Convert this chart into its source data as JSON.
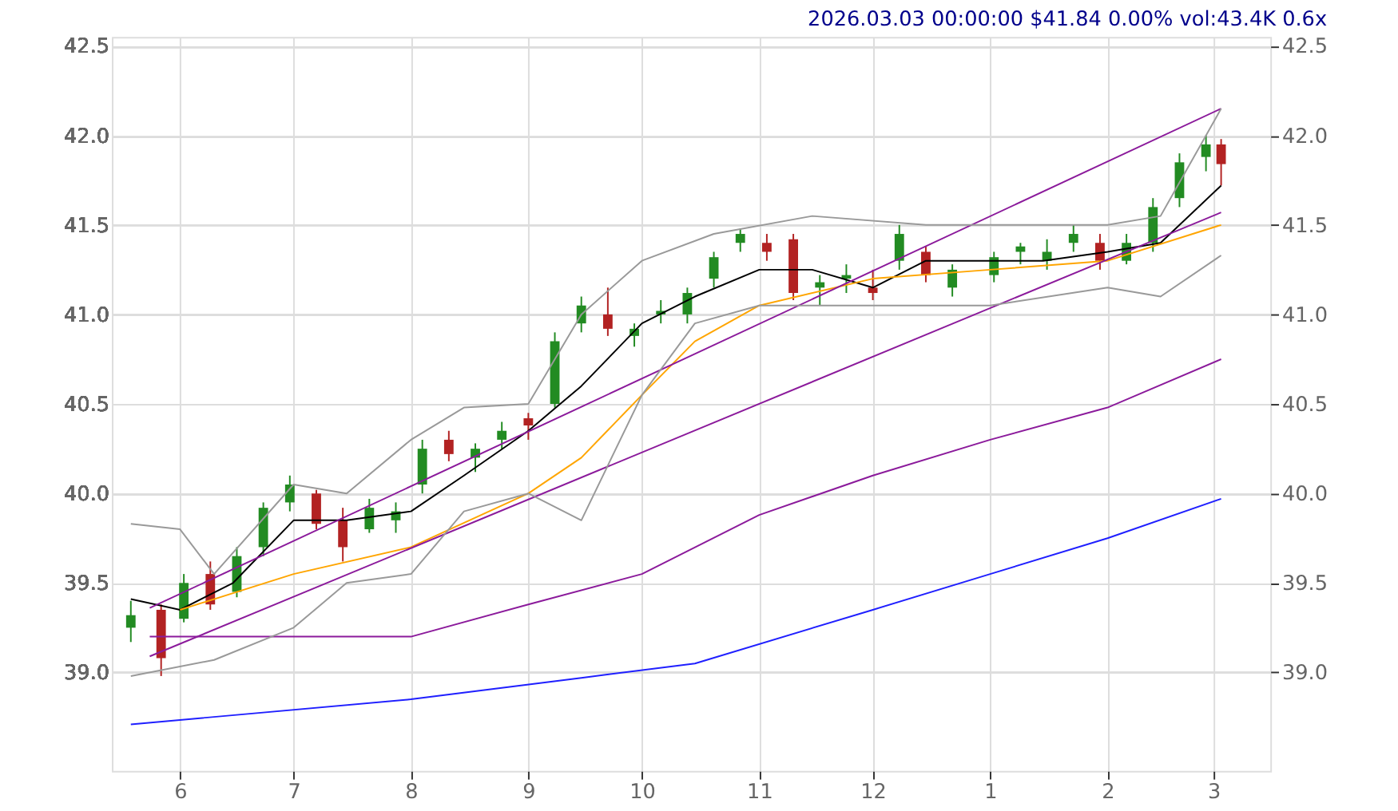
{
  "chart_data": {
    "type": "candlestick",
    "title": "2026.03.03 00:00:00 $41.84 0.00% vol:43.4K 0.6x",
    "x": [
      "2025-05-19",
      "2025-05-27",
      "2025-06-02",
      "2025-06-09",
      "2025-06-16",
      "2025-06-23",
      "2025-06-30",
      "2025-07-07",
      "2025-07-14",
      "2025-07-21",
      "2025-07-28",
      "2025-08-04",
      "2025-08-11",
      "2025-08-18",
      "2025-08-25",
      "2025-09-01",
      "2025-09-08",
      "2025-09-15",
      "2025-09-22",
      "2025-09-29",
      "2025-10-06",
      "2025-10-13",
      "2025-10-20",
      "2025-10-27",
      "2025-11-03",
      "2025-11-10",
      "2025-11-17",
      "2025-11-24",
      "2025-12-01",
      "2025-12-08",
      "2025-12-15",
      "2025-12-22",
      "2026-01-02",
      "2026-01-09",
      "2026-01-16",
      "2026-01-23",
      "2026-01-30",
      "2026-02-06",
      "2026-02-13",
      "2026-02-20",
      "2026-02-27",
      "2026-03-03"
    ],
    "ohlc": [
      [
        39.25,
        39.4,
        39.17,
        39.32
      ],
      [
        39.35,
        39.38,
        38.98,
        39.08
      ],
      [
        39.3,
        39.55,
        39.28,
        39.5
      ],
      [
        39.55,
        39.62,
        39.35,
        39.38
      ],
      [
        39.45,
        39.7,
        39.42,
        39.65
      ],
      [
        39.7,
        39.95,
        39.65,
        39.92
      ],
      [
        39.95,
        40.1,
        39.9,
        40.05
      ],
      [
        40.0,
        40.02,
        39.8,
        39.83
      ],
      [
        39.85,
        39.92,
        39.62,
        39.7
      ],
      [
        39.8,
        39.97,
        39.78,
        39.92
      ],
      [
        39.85,
        39.95,
        39.78,
        39.9
      ],
      [
        40.05,
        40.3,
        40.0,
        40.25
      ],
      [
        40.3,
        40.35,
        40.18,
        40.22
      ],
      [
        40.2,
        40.28,
        40.12,
        40.25
      ],
      [
        40.3,
        40.4,
        40.25,
        40.35
      ],
      [
        40.42,
        40.45,
        40.3,
        40.38
      ],
      [
        40.5,
        40.9,
        40.48,
        40.85
      ],
      [
        40.95,
        41.1,
        40.9,
        41.05
      ],
      [
        41.0,
        41.15,
        40.88,
        40.92
      ],
      [
        40.88,
        40.95,
        40.82,
        40.92
      ],
      [
        41.0,
        41.08,
        40.95,
        41.02
      ],
      [
        41.0,
        41.15,
        40.95,
        41.12
      ],
      [
        41.2,
        41.35,
        41.15,
        41.32
      ],
      [
        41.4,
        41.48,
        41.35,
        41.45
      ],
      [
        41.4,
        41.45,
        41.3,
        41.35
      ],
      [
        41.42,
        41.45,
        41.08,
        41.12
      ],
      [
        41.15,
        41.22,
        41.05,
        41.18
      ],
      [
        41.2,
        41.28,
        41.12,
        41.22
      ],
      [
        41.15,
        41.25,
        41.08,
        41.12
      ],
      [
        41.3,
        41.5,
        41.25,
        41.45
      ],
      [
        41.35,
        41.38,
        41.18,
        41.22
      ],
      [
        41.15,
        41.28,
        41.1,
        41.25
      ],
      [
        41.22,
        41.35,
        41.18,
        41.32
      ],
      [
        41.35,
        41.4,
        41.28,
        41.38
      ],
      [
        41.3,
        41.42,
        41.25,
        41.35
      ],
      [
        41.4,
        41.5,
        41.35,
        41.45
      ],
      [
        41.4,
        41.45,
        41.25,
        41.3
      ],
      [
        41.3,
        41.45,
        41.28,
        41.4
      ],
      [
        41.4,
        41.65,
        41.35,
        41.6
      ],
      [
        41.65,
        41.9,
        41.6,
        41.85
      ],
      [
        41.88,
        42.0,
        41.8,
        41.95
      ],
      [
        41.95,
        41.98,
        41.72,
        41.84
      ]
    ],
    "colors": [
      "#228b22",
      "#b22222",
      "#228b22",
      "#b22222",
      "#228b22",
      "#228b22",
      "#228b22",
      "#b22222",
      "#b22222",
      "#228b22",
      "#228b22",
      "#228b22",
      "#b22222",
      "#228b22",
      "#228b22",
      "#b22222",
      "#228b22",
      "#228b22",
      "#b22222",
      "#228b22",
      "#228b22",
      "#228b22",
      "#228b22",
      "#228b22",
      "#b22222",
      "#b22222",
      "#228b22",
      "#228b22",
      "#b22222",
      "#228b22",
      "#b22222",
      "#228b22",
      "#228b22",
      "#228b22",
      "#228b22",
      "#228b22",
      "#b22222",
      "#228b22",
      "#228b22",
      "#228b22",
      "#228b22",
      "#b22222"
    ],
    "series": [
      {
        "type": "line",
        "color": "#000000",
        "x": [
          "2025-05-19",
          "2025-06-01",
          "2025-06-15",
          "2025-07-01",
          "2025-07-15",
          "2025-08-01",
          "2025-08-15",
          "2025-09-01",
          "2025-09-15",
          "2025-10-01",
          "2025-10-15",
          "2025-11-01",
          "2025-11-15",
          "2025-12-01",
          "2025-12-15",
          "2026-01-01",
          "2026-01-15",
          "2026-02-01",
          "2026-02-15",
          "2026-03-03"
        ],
        "values": [
          39.41,
          39.35,
          39.5,
          39.85,
          39.85,
          39.9,
          40.1,
          40.35,
          40.6,
          40.95,
          41.1,
          41.25,
          41.25,
          41.15,
          41.3,
          41.3,
          41.3,
          41.35,
          41.4,
          41.72
        ]
      },
      {
        "type": "line",
        "color": "#ffa500",
        "x": [
          "2025-06-01",
          "2025-07-01",
          "2025-08-01",
          "2025-09-01",
          "2025-09-15",
          "2025-10-01",
          "2025-10-15",
          "2025-11-01",
          "2025-12-01",
          "2026-01-01",
          "2026-02-01",
          "2026-03-03"
        ],
        "values": [
          39.35,
          39.55,
          39.7,
          40.0,
          40.2,
          40.55,
          40.85,
          41.05,
          41.2,
          41.25,
          41.3,
          41.5
        ]
      },
      {
        "type": "line",
        "color": "#8b1a9b",
        "x": [
          "2025-05-24",
          "2026-03-03"
        ],
        "values": [
          39.36,
          42.15
        ]
      },
      {
        "type": "line",
        "color": "#8b1a9b",
        "x": [
          "2025-05-24",
          "2026-03-03"
        ],
        "values": [
          39.09,
          41.57
        ]
      },
      {
        "type": "line",
        "color": "#8b1a9b",
        "x": [
          "2025-05-24",
          "2025-08-01",
          "2025-09-01",
          "2025-10-01",
          "2025-11-01",
          "2025-12-01",
          "2026-01-01",
          "2026-02-01",
          "2026-03-03"
        ],
        "values": [
          39.2,
          39.2,
          39.38,
          39.55,
          39.88,
          40.1,
          40.3,
          40.48,
          40.75
        ]
      },
      {
        "type": "line",
        "color": "#1f1fff",
        "x": [
          "2025-05-19",
          "2025-08-01",
          "2025-09-15",
          "2025-10-15",
          "2025-12-01",
          "2026-01-01",
          "2026-02-01",
          "2026-03-03"
        ],
        "values": [
          38.71,
          38.85,
          38.97,
          39.05,
          39.35,
          39.55,
          39.75,
          39.97
        ]
      },
      {
        "type": "line",
        "color": "#999999",
        "x": [
          "2025-05-19",
          "2025-06-01",
          "2025-06-10",
          "2025-07-01",
          "2025-07-15",
          "2025-08-01",
          "2025-08-15",
          "2025-09-01",
          "2025-09-15",
          "2025-10-01",
          "2025-10-20",
          "2025-11-15",
          "2025-12-15",
          "2026-01-15",
          "2026-02-01",
          "2026-02-15",
          "2026-03-03"
        ],
        "values": [
          39.83,
          39.8,
          39.55,
          40.05,
          40.0,
          40.3,
          40.48,
          40.5,
          41.0,
          41.3,
          41.45,
          41.55,
          41.5,
          41.5,
          41.5,
          41.55,
          42.15
        ]
      },
      {
        "type": "line",
        "color": "#999999",
        "x": [
          "2025-05-19",
          "2025-06-10",
          "2025-07-01",
          "2025-07-15",
          "2025-08-01",
          "2025-08-15",
          "2025-09-01",
          "2025-09-15",
          "2025-10-01",
          "2025-10-15",
          "2025-11-01",
          "2025-12-01",
          "2026-01-01",
          "2026-02-01",
          "2026-02-15",
          "2026-03-03"
        ],
        "values": [
          38.98,
          39.07,
          39.25,
          39.5,
          39.55,
          39.9,
          40.0,
          39.85,
          40.55,
          40.95,
          41.05,
          41.05,
          41.05,
          41.15,
          41.1,
          41.33
        ]
      }
    ],
    "xlim": [
      "2025-05-14",
      "2026-03-16"
    ],
    "xticks": [
      {
        "value": "2025-06-01",
        "label": "6"
      },
      {
        "value": "2025-07-01",
        "label": "7"
      },
      {
        "value": "2025-08-01",
        "label": "8"
      },
      {
        "value": "2025-09-01",
        "label": "9"
      },
      {
        "value": "2025-10-01",
        "label": "10"
      },
      {
        "value": "2025-11-01",
        "label": "11"
      },
      {
        "value": "2025-12-01",
        "label": "12"
      },
      {
        "value": "2026-01-01",
        "label": "1"
      },
      {
        "value": "2026-02-01",
        "label": "2"
      },
      {
        "value": "2026-03-01",
        "label": "3"
      }
    ],
    "ylim": [
      38.45,
      42.55
    ],
    "yticks": [
      {
        "value": 39,
        "label": "39.0"
      },
      {
        "value": 39.5,
        "label": "39.5"
      },
      {
        "value": 40,
        "label": "40.0"
      },
      {
        "value": 40.5,
        "label": "40.5"
      },
      {
        "value": 41,
        "label": "41.0"
      },
      {
        "value": 41.5,
        "label": "41.5"
      },
      {
        "value": 42,
        "label": "42.0"
      },
      {
        "value": 42.5,
        "label": "42.5"
      }
    ],
    "y2lim": [
      38.45,
      42.55
    ],
    "y2ticks": [
      {
        "value": 39,
        "label": "39.0"
      },
      {
        "value": 39.5,
        "label": "39.5"
      },
      {
        "value": 40,
        "label": "40.0"
      },
      {
        "value": 40.5,
        "label": "40.5"
      },
      {
        "value": 41,
        "label": "41.0"
      },
      {
        "value": 41.5,
        "label": "41.5"
      },
      {
        "value": 42,
        "label": "42.0"
      },
      {
        "value": 42.5,
        "label": "42.5"
      }
    ],
    "grid": true,
    "marker": "none",
    "line_style": "solid"
  }
}
